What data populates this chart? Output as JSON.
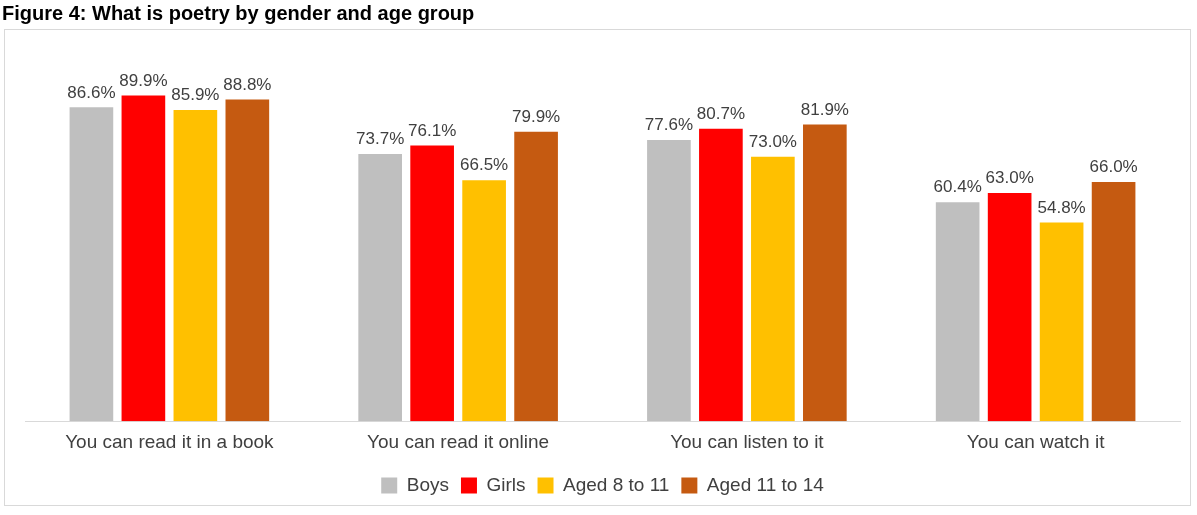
{
  "chart_data": {
    "type": "bar",
    "title": "Figure 4: What is poetry by gender and age group",
    "categories": [
      "You can read it in a book",
      "You can read it online",
      "You can listen to it",
      "You can watch it"
    ],
    "series": [
      {
        "name": "Boys",
        "color": "#bfbfbf",
        "values": [
          86.6,
          73.7,
          77.6,
          60.4
        ],
        "value_labels": [
          "86.6%",
          "73.7%",
          "77.6%",
          "60.4%"
        ]
      },
      {
        "name": "Girls",
        "color": "#ff0000",
        "values": [
          89.9,
          76.1,
          80.7,
          63.0
        ],
        "value_labels": [
          "89.9%",
          "76.1%",
          "80.7%",
          "63.0%"
        ]
      },
      {
        "name": "Aged 8 to 11",
        "color": "#ffc000",
        "values": [
          85.9,
          66.5,
          73.0,
          54.8
        ],
        "value_labels": [
          "85.9%",
          "66.5%",
          "73.0%",
          "54.8%"
        ]
      },
      {
        "name": "Aged 11 to 14",
        "color": "#c55a11",
        "values": [
          88.8,
          79.9,
          81.9,
          66.0
        ],
        "value_labels": [
          "88.8%",
          "79.9%",
          "81.9%",
          "66.0%"
        ]
      }
    ],
    "legend": "bottom"
  }
}
